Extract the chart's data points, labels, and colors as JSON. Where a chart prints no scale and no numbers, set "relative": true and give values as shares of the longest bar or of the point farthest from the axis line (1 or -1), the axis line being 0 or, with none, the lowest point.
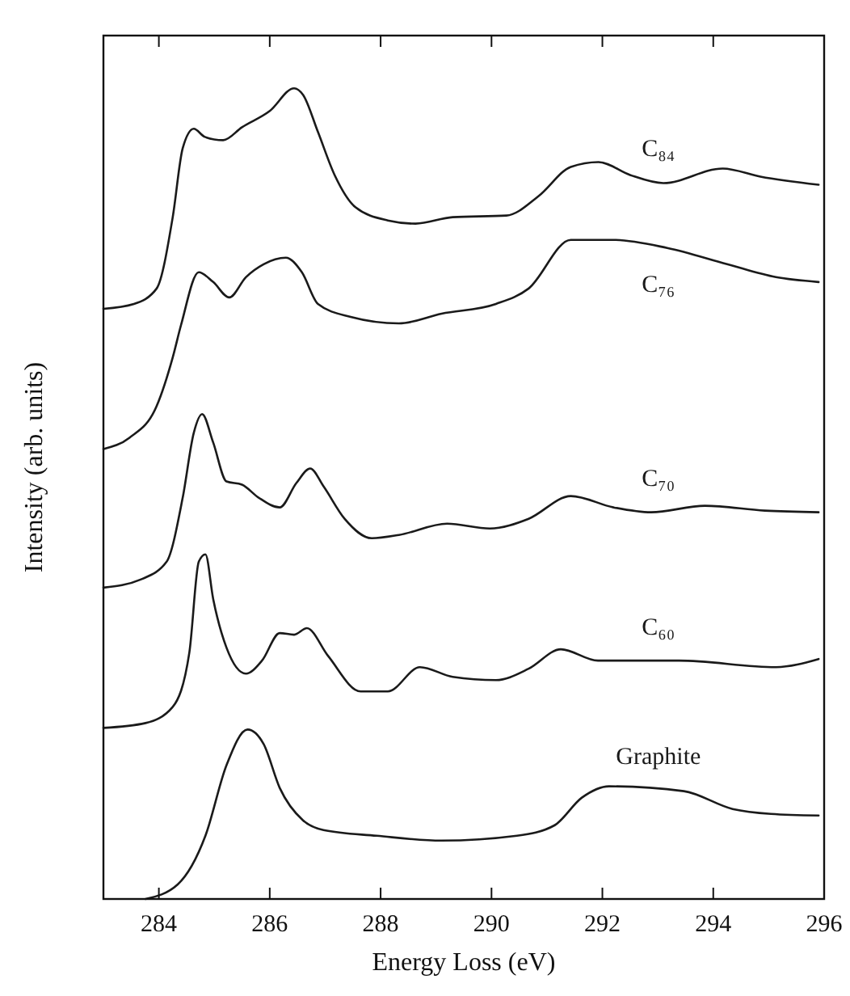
{
  "chart_data": {
    "type": "line",
    "relative": true,
    "xlabel": "Energy Loss (eV)",
    "ylabel": "Intensity (arb. units)",
    "xlim": [
      283,
      296
    ],
    "xticks": [
      284,
      286,
      288,
      290,
      292,
      294,
      296
    ],
    "grid": false,
    "marker": "none",
    "line_style": "solid",
    "series": [
      {
        "name": "C₈₄",
        "color": "#1a1a1a",
        "x": [
          283,
          283.55,
          283.96,
          284.25,
          284.43,
          284.63,
          284.83,
          285.16,
          285.5,
          286.0,
          286.44,
          286.6,
          286.87,
          287.17,
          287.55,
          288.13,
          288.63,
          289.3,
          290.27,
          290.85,
          291.43,
          291.93,
          292.5,
          293.1,
          294.17,
          294.85,
          295.9
        ],
        "values": [
          0.728,
          0.734,
          0.753,
          0.841,
          0.926,
          0.95,
          0.94,
          0.936,
          0.952,
          0.972,
          1.0,
          0.992,
          0.946,
          0.893,
          0.853,
          0.837,
          0.833,
          0.841,
          0.843,
          0.867,
          0.903,
          0.909,
          0.893,
          0.883,
          0.901,
          0.891,
          0.881
        ]
      },
      {
        "name": "C₇₆",
        "color": "#1a1a1a",
        "x": [
          283,
          283.47,
          283.96,
          284.25,
          284.4,
          284.72,
          284.98,
          285.27,
          285.57,
          285.89,
          286.29,
          286.58,
          286.87,
          287.46,
          288.33,
          289.1,
          290.08,
          290.67,
          291.43,
          292.2,
          293.17,
          294.25,
          295.13,
          295.9
        ],
        "values": [
          0.555,
          0.569,
          0.608,
          0.668,
          0.708,
          0.773,
          0.761,
          0.742,
          0.767,
          0.783,
          0.791,
          0.773,
          0.734,
          0.718,
          0.71,
          0.722,
          0.734,
          0.753,
          0.813,
          0.813,
          0.803,
          0.783,
          0.767,
          0.761
        ]
      },
      {
        "name": "C₇₀",
        "color": "#1a1a1a",
        "x": [
          283,
          283.67,
          284.14,
          284.43,
          284.63,
          284.78,
          284.98,
          285.22,
          285.5,
          285.8,
          286.18,
          286.48,
          286.73,
          286.97,
          287.35,
          287.84,
          288.33,
          289.2,
          289.97,
          290.67,
          291.43,
          292.2,
          292.88,
          293.85,
          294.93,
          295.9
        ],
        "values": [
          0.384,
          0.394,
          0.416,
          0.495,
          0.575,
          0.598,
          0.563,
          0.515,
          0.511,
          0.495,
          0.483,
          0.513,
          0.531,
          0.509,
          0.469,
          0.445,
          0.449,
          0.463,
          0.457,
          0.469,
          0.497,
          0.483,
          0.477,
          0.485,
          0.479,
          0.477
        ]
      },
      {
        "name": "C₆₀",
        "color": "#1a1a1a",
        "x": [
          283,
          283.76,
          284.25,
          284.55,
          284.72,
          284.84,
          284.98,
          285.22,
          285.57,
          285.86,
          286.18,
          286.44,
          286.67,
          287.05,
          287.64,
          288.13,
          288.71,
          289.3,
          290.08,
          290.67,
          291.25,
          291.92,
          293.38,
          295.13,
          295.9
        ],
        "values": [
          0.211,
          0.217,
          0.237,
          0.304,
          0.416,
          0.425,
          0.37,
          0.31,
          0.278,
          0.294,
          0.328,
          0.326,
          0.334,
          0.3,
          0.256,
          0.256,
          0.286,
          0.274,
          0.27,
          0.284,
          0.308,
          0.294,
          0.294,
          0.286,
          0.296
        ]
      },
      {
        "name": "Graphite",
        "color": "#1a1a1a",
        "x": [
          283.76,
          284.34,
          284.84,
          285.22,
          285.6,
          285.89,
          286.18,
          286.6,
          286.97,
          287.93,
          289.1,
          290.46,
          291.14,
          291.63,
          292.12,
          293.47,
          294.35,
          295.04,
          295.9
        ],
        "values": [
          0,
          0.018,
          0.078,
          0.165,
          0.209,
          0.191,
          0.137,
          0.097,
          0.085,
          0.078,
          0.072,
          0.078,
          0.091,
          0.125,
          0.139,
          0.133,
          0.111,
          0.105,
          0.103
        ]
      }
    ]
  }
}
